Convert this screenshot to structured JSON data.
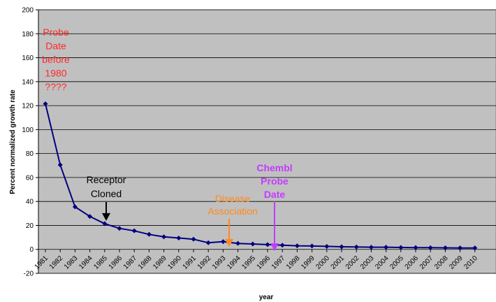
{
  "chart_data": {
    "type": "line",
    "title": "",
    "xlabel": "year",
    "ylabel": "Percent normalized growth rate",
    "ylim": [
      -20,
      200
    ],
    "yticks": [
      -20,
      0,
      20,
      40,
      60,
      80,
      100,
      120,
      140,
      160,
      180,
      200
    ],
    "grid": "horizontal",
    "legend": "none",
    "categories": [
      "1981",
      "1982",
      "1983",
      "1984",
      "1985",
      "1986",
      "1987",
      "1988",
      "1989",
      "1990",
      "1991",
      "1992",
      "1993",
      "1994",
      "1995",
      "1996",
      "1997",
      "1998",
      "1999",
      "2000",
      "2001",
      "2002",
      "2003",
      "2004",
      "2005",
      "2006",
      "2007",
      "2008",
      "2009",
      "2010"
    ],
    "series": [
      {
        "values": [
          121.5,
          70.5,
          35.5,
          27.5,
          21.5,
          17.5,
          15.5,
          12.5,
          10.5,
          9.5,
          8.5,
          5.5,
          6.5,
          5.0,
          4.5,
          4.0,
          3.5,
          3.0,
          2.8,
          2.5,
          2.2,
          2.0,
          1.8,
          1.8,
          1.6,
          1.5,
          1.4,
          1.3,
          1.2,
          1.2
        ]
      }
    ],
    "annotations": [
      {
        "id": "probe-date",
        "lines": [
          "Probe",
          "Date",
          "before",
          "1980",
          "????"
        ],
        "color": "#ff2a2a",
        "bold": false
      },
      {
        "id": "receptor",
        "lines": [
          "Receptor",
          "Cloned"
        ],
        "color": "#000000",
        "bold": false,
        "arrow_year": "1985"
      },
      {
        "id": "disease",
        "lines": [
          "Disease",
          "Association"
        ],
        "color": "#ff8a1e",
        "bold": false,
        "arrow_year": "1993"
      },
      {
        "id": "chembl",
        "lines": [
          "Chembl",
          "Probe",
          "Date"
        ],
        "color": "#c23cff",
        "bold": true,
        "arrow_year": "1996"
      }
    ],
    "colors": {
      "plot_bg": "#c0c0c0",
      "line": "#000080",
      "grid": "#000000"
    }
  }
}
